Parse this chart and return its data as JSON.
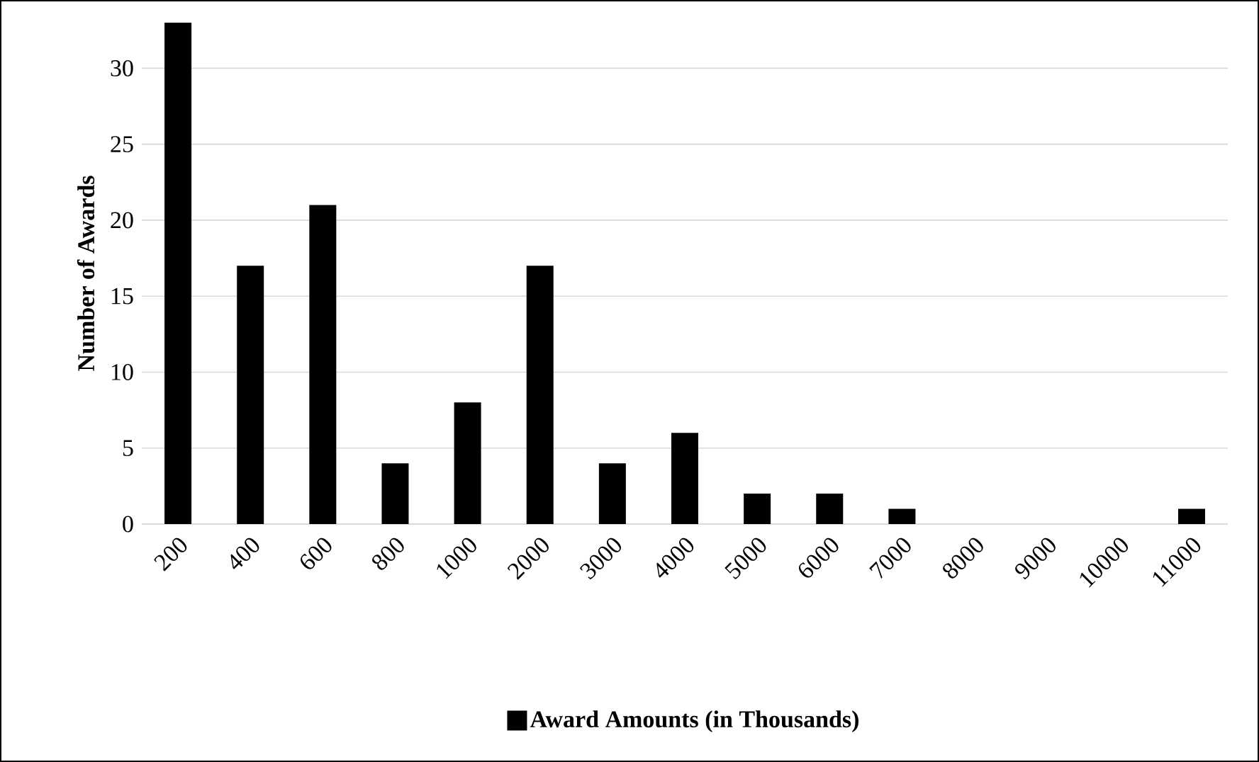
{
  "chart_data": {
    "type": "bar",
    "ylabel": "Number of Awards",
    "categories": [
      "200",
      "400",
      "600",
      "800",
      "1000",
      "2000",
      "3000",
      "4000",
      "5000",
      "6000",
      "7000",
      "8000",
      "9000",
      "10000",
      "11000"
    ],
    "series": [
      {
        "name": "Award Amounts (in Thousands)",
        "color": "#000000",
        "values": [
          33,
          17,
          21,
          4,
          8,
          17,
          4,
          6,
          2,
          2,
          1,
          0,
          0,
          0,
          1
        ]
      }
    ],
    "ylim": [
      0,
      33
    ],
    "yticks": [
      0,
      5,
      10,
      15,
      20,
      25,
      30
    ],
    "grid": "y",
    "legend": "bottom"
  }
}
